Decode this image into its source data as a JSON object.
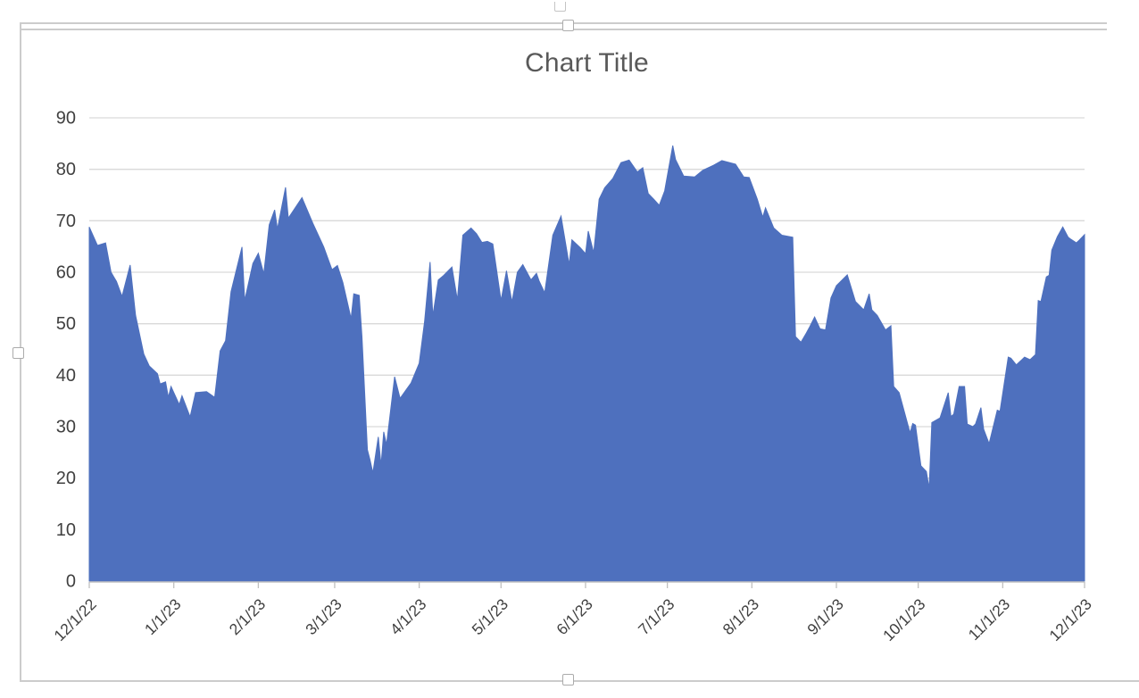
{
  "title": "Chart Title",
  "colors": {
    "area_fill": "#4E70BE",
    "gridline": "#D9D9D9",
    "axis_line": "#C0C0C0",
    "title_text": "#595959",
    "axis_text": "#404040",
    "selection_line": "#CCCCCC",
    "handle_fill": "#FFFFFF",
    "handle_border": "#ABABAB"
  },
  "chart_data": {
    "type": "area",
    "title": "Chart Title",
    "legend": false,
    "grid": true,
    "x_unit": "days since 12/1/2022",
    "ylim": [
      0,
      90
    ],
    "y_ticks": [
      0,
      10,
      20,
      30,
      40,
      50,
      60,
      70,
      80,
      90
    ],
    "x_ticks": [
      {
        "label": "12/1/22",
        "day": 0
      },
      {
        "label": "1/1/23",
        "day": 31
      },
      {
        "label": "2/1/23",
        "day": 62
      },
      {
        "label": "3/1/23",
        "day": 90
      },
      {
        "label": "4/1/23",
        "day": 121
      },
      {
        "label": "5/1/23",
        "day": 151
      },
      {
        "label": "6/1/23",
        "day": 182
      },
      {
        "label": "7/1/23",
        "day": 212
      },
      {
        "label": "8/1/23",
        "day": 243
      },
      {
        "label": "9/1/23",
        "day": 274
      },
      {
        "label": "10/1/23",
        "day": 304
      },
      {
        "label": "11/1/23",
        "day": 335
      },
      {
        "label": "12/1/23",
        "day": 365
      }
    ],
    "series": [
      {
        "name": "Series 1",
        "points": [
          [
            0,
            68.8
          ],
          [
            3,
            65.2
          ],
          [
            6,
            65.7
          ],
          [
            8,
            60.0
          ],
          [
            10,
            58.2
          ],
          [
            12,
            55.3
          ],
          [
            15,
            61.4
          ],
          [
            17,
            51.6
          ],
          [
            20,
            44.1
          ],
          [
            22,
            41.8
          ],
          [
            25,
            40.3
          ],
          [
            26,
            38.3
          ],
          [
            28,
            38.7
          ],
          [
            29,
            35.7
          ],
          [
            30,
            37.8
          ],
          [
            33,
            34.3
          ],
          [
            34,
            36.0
          ],
          [
            37,
            31.9
          ],
          [
            39,
            36.6
          ],
          [
            43,
            36.8
          ],
          [
            46,
            35.7
          ],
          [
            48,
            44.7
          ],
          [
            50,
            46.7
          ],
          [
            52,
            56.2
          ],
          [
            55,
            62.7
          ],
          [
            56,
            64.9
          ],
          [
            57,
            54.5
          ],
          [
            60,
            61.7
          ],
          [
            62,
            63.7
          ],
          [
            64,
            59.7
          ],
          [
            66,
            69.2
          ],
          [
            68,
            72.1
          ],
          [
            69,
            68.4
          ],
          [
            72,
            76.5
          ],
          [
            73,
            70.5
          ],
          [
            78,
            74.5
          ],
          [
            82,
            69.5
          ],
          [
            86,
            64.9
          ],
          [
            89,
            60.5
          ],
          [
            91,
            61.3
          ],
          [
            93,
            58.0
          ],
          [
            96,
            51.0
          ],
          [
            97,
            55.8
          ],
          [
            99,
            55.5
          ],
          [
            100,
            47.5
          ],
          [
            102,
            25.5
          ],
          [
            103,
            23.5
          ],
          [
            104,
            21.0
          ],
          [
            106,
            28.0
          ],
          [
            107,
            22.5
          ],
          [
            108,
            29.0
          ],
          [
            109,
            26.5
          ],
          [
            112,
            39.7
          ],
          [
            114,
            35.5
          ],
          [
            116,
            37.0
          ],
          [
            118,
            38.5
          ],
          [
            121,
            42.3
          ],
          [
            123,
            50.5
          ],
          [
            125,
            62.0
          ],
          [
            126,
            51.5
          ],
          [
            128,
            58.5
          ],
          [
            130,
            59.4
          ],
          [
            133,
            61.0
          ],
          [
            135,
            54.6
          ],
          [
            137,
            67.2
          ],
          [
            140,
            68.6
          ],
          [
            142,
            67.5
          ],
          [
            144,
            65.8
          ],
          [
            146,
            66.0
          ],
          [
            148,
            65.5
          ],
          [
            151,
            54.5
          ],
          [
            153,
            60.3
          ],
          [
            155,
            54.2
          ],
          [
            157,
            60.0
          ],
          [
            159,
            61.5
          ],
          [
            162,
            58.5
          ],
          [
            164,
            59.8
          ],
          [
            165,
            58.3
          ],
          [
            167,
            56.0
          ],
          [
            170,
            67.2
          ],
          [
            173,
            70.9
          ],
          [
            176,
            61.5
          ],
          [
            177,
            66.3
          ],
          [
            180,
            64.8
          ],
          [
            182,
            63.6
          ],
          [
            183,
            68.0
          ],
          [
            185,
            63.8
          ],
          [
            187,
            74.2
          ],
          [
            189,
            76.4
          ],
          [
            192,
            78.2
          ],
          [
            195,
            81.3
          ],
          [
            198,
            81.8
          ],
          [
            201,
            79.5
          ],
          [
            203,
            80.3
          ],
          [
            205,
            75.3
          ],
          [
            207,
            74.2
          ],
          [
            209,
            73.0
          ],
          [
            211,
            75.8
          ],
          [
            214,
            84.6
          ],
          [
            215,
            81.9
          ],
          [
            218,
            78.7
          ],
          [
            222,
            78.5
          ],
          [
            225,
            79.8
          ],
          [
            229,
            80.8
          ],
          [
            232,
            81.7
          ],
          [
            237,
            81.0
          ],
          [
            240,
            78.5
          ],
          [
            242,
            78.4
          ],
          [
            245,
            74.2
          ],
          [
            247,
            70.7
          ],
          [
            248,
            72.5
          ],
          [
            251,
            68.6
          ],
          [
            254,
            67.2
          ],
          [
            258,
            66.8
          ],
          [
            259,
            47.5
          ],
          [
            261,
            46.4
          ],
          [
            263,
            48.2
          ],
          [
            264,
            49.2
          ],
          [
            266,
            51.3
          ],
          [
            268,
            49.0
          ],
          [
            270,
            48.8
          ],
          [
            272,
            55.0
          ],
          [
            274,
            57.4
          ],
          [
            278,
            59.5
          ],
          [
            281,
            54.3
          ],
          [
            284,
            52.7
          ],
          [
            286,
            55.8
          ],
          [
            287,
            52.7
          ],
          [
            289,
            51.6
          ],
          [
            292,
            48.8
          ],
          [
            294,
            49.6
          ],
          [
            295,
            37.8
          ],
          [
            297,
            36.6
          ],
          [
            300,
            30.8
          ],
          [
            301,
            28.8
          ],
          [
            302,
            30.6
          ],
          [
            303,
            30.3
          ],
          [
            305,
            22.4
          ],
          [
            307,
            21.3
          ],
          [
            308,
            18.0
          ],
          [
            309,
            30.8
          ],
          [
            312,
            31.7
          ],
          [
            315,
            36.6
          ],
          [
            316,
            32.0
          ],
          [
            317,
            32.4
          ],
          [
            319,
            37.8
          ],
          [
            321,
            37.8
          ],
          [
            322,
            30.5
          ],
          [
            324,
            30.0
          ],
          [
            325,
            30.5
          ],
          [
            327,
            33.7
          ],
          [
            328,
            29.5
          ],
          [
            330,
            26.7
          ],
          [
            333,
            33.2
          ],
          [
            334,
            33.0
          ],
          [
            337,
            43.5
          ],
          [
            338,
            43.3
          ],
          [
            340,
            42.0
          ],
          [
            343,
            43.5
          ],
          [
            345,
            43.0
          ],
          [
            347,
            44.0
          ],
          [
            348,
            54.5
          ],
          [
            349,
            54.3
          ],
          [
            351,
            59.1
          ],
          [
            352,
            59.4
          ],
          [
            353,
            64.3
          ],
          [
            355,
            66.9
          ],
          [
            357,
            68.8
          ],
          [
            359,
            66.8
          ],
          [
            360,
            66.4
          ],
          [
            362,
            65.7
          ],
          [
            363,
            66.2
          ],
          [
            365,
            67.3
          ]
        ]
      }
    ]
  }
}
